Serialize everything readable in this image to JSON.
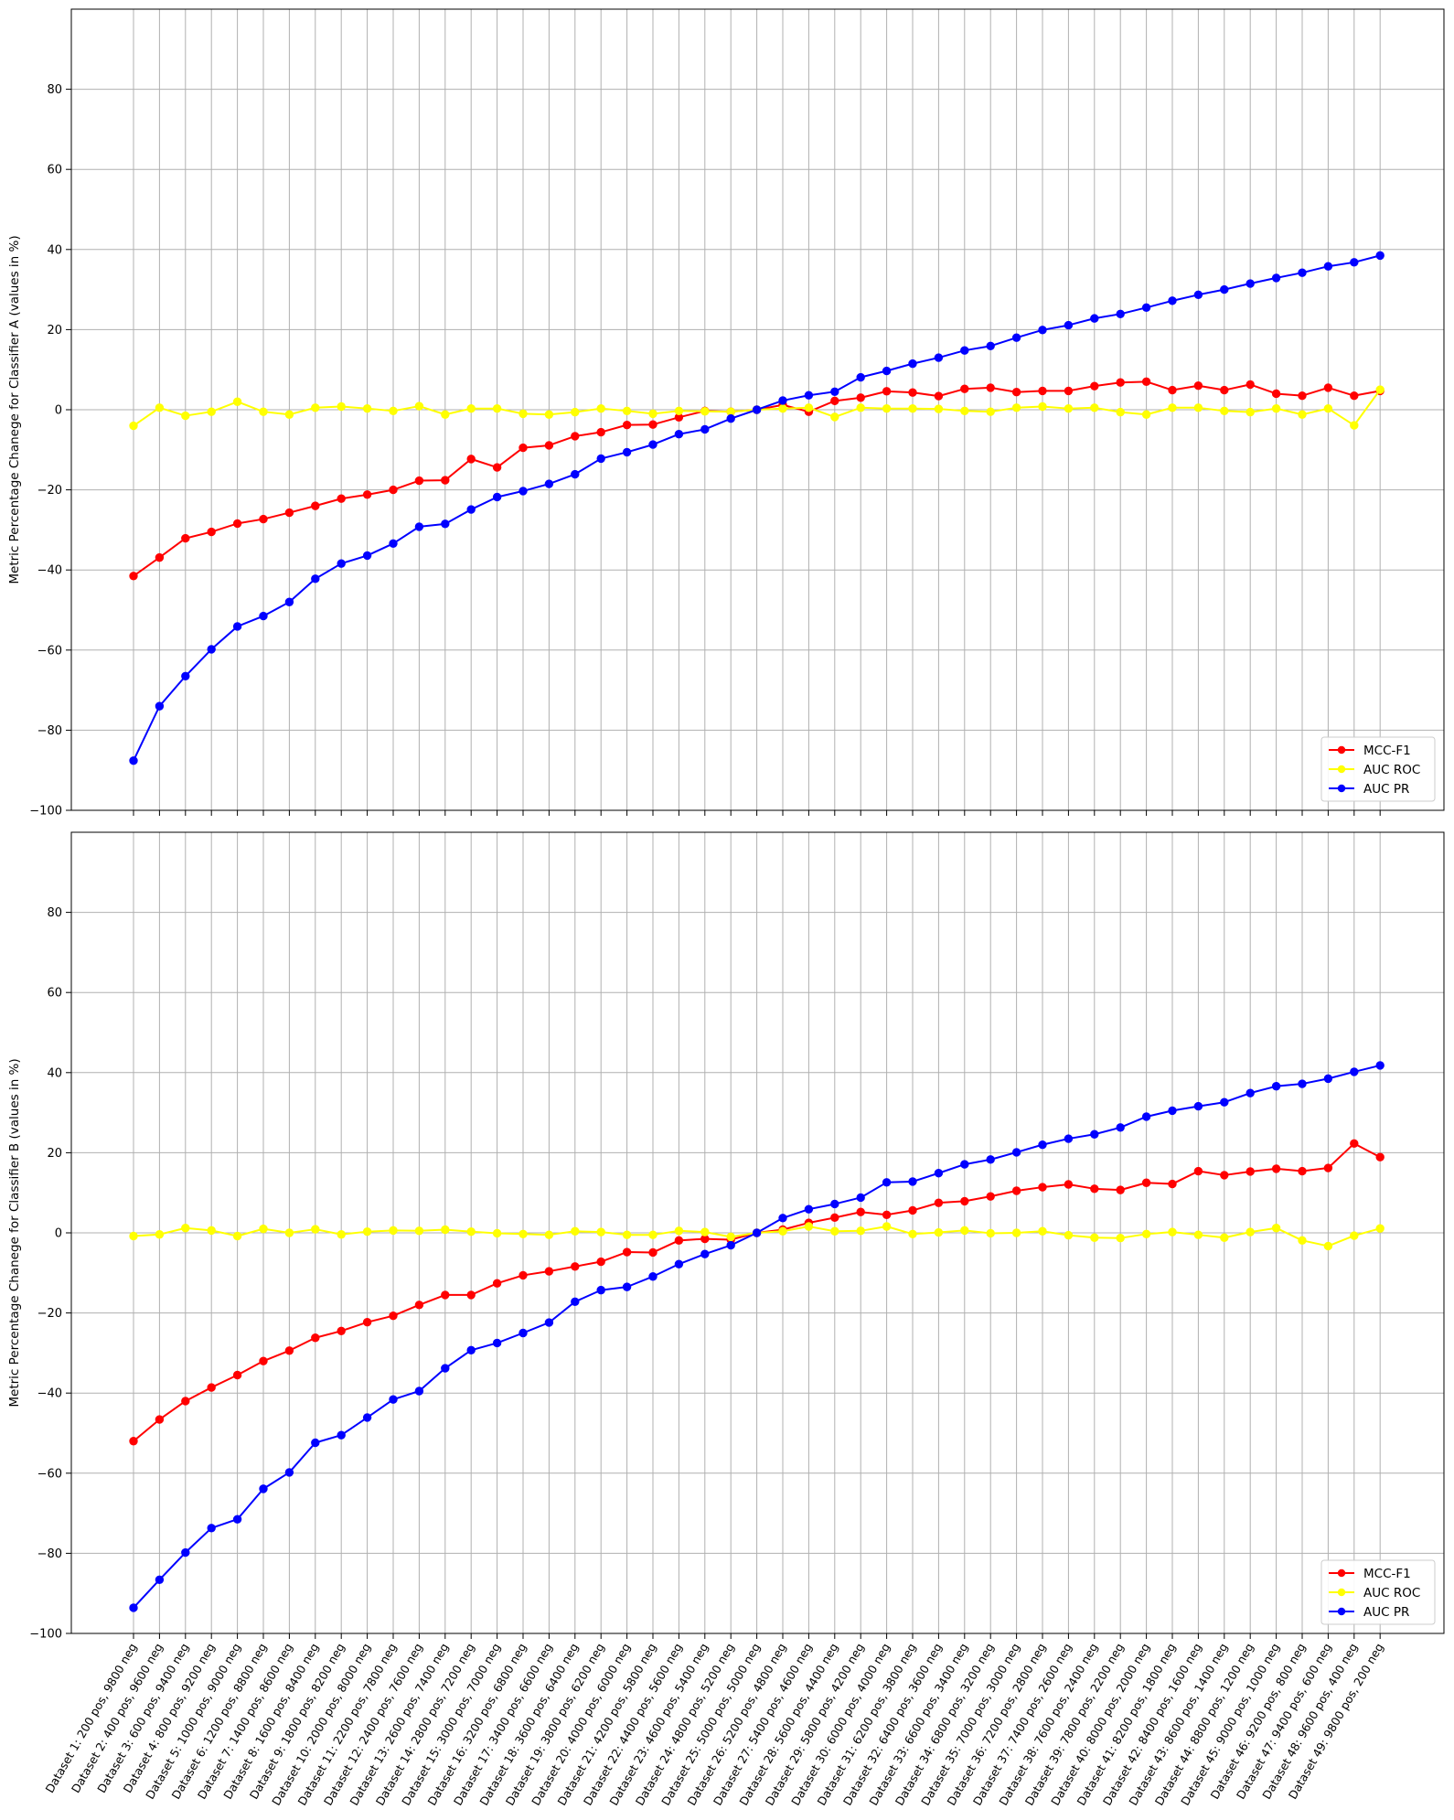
{
  "chart_data": [
    {
      "type": "line",
      "ylabel": "Metric Percentage Chanege for Classifier A (values in %)",
      "ylim": [
        -100,
        100
      ],
      "yticks": [
        -100,
        -80,
        -60,
        -40,
        -20,
        0,
        20,
        40,
        60,
        80
      ],
      "grid": true,
      "legend_position": "lower-right",
      "series": [
        {
          "name": "MCC-F1",
          "color": "#ff0000",
          "values": [
            -41.5,
            -36.9,
            -32.1,
            -30.5,
            -28.4,
            -27.3,
            -25.7,
            -24.0,
            -22.2,
            -21.2,
            -20.0,
            -17.7,
            -17.6,
            -12.3,
            -14.4,
            -9.5,
            -8.9,
            -6.6,
            -5.6,
            -3.8,
            -3.7,
            -1.9,
            -0.3,
            -0.5,
            0.0,
            1.2,
            -0.5,
            2.2,
            3.0,
            4.6,
            4.3,
            3.4,
            5.2,
            5.5,
            4.4,
            4.7,
            4.7,
            5.9,
            6.8,
            7.0,
            4.9,
            6.0,
            4.9,
            6.3,
            4.0,
            3.5,
            5.5,
            3.5,
            4.7
          ]
        },
        {
          "name": "AUC ROC",
          "color": "#ffff00",
          "values": [
            -4.0,
            0.5,
            -1.5,
            -0.5,
            2.0,
            -0.5,
            -1.2,
            0.5,
            0.8,
            0.3,
            -0.3,
            0.9,
            -1.2,
            0.3,
            0.3,
            -1.0,
            -1.2,
            -0.6,
            0.3,
            -0.3,
            -1.0,
            -0.3,
            -0.4,
            -0.5,
            0.0,
            0.3,
            0.5,
            -1.8,
            0.5,
            0.3,
            0.3,
            0.2,
            -0.3,
            -0.5,
            0.5,
            0.8,
            0.3,
            0.5,
            -0.6,
            -1.2,
            0.5,
            0.5,
            -0.3,
            -0.6,
            0.3,
            -1.2,
            0.3,
            -3.9,
            5.0
          ]
        },
        {
          "name": "AUC PR",
          "color": "#0000ff",
          "values": [
            -87.6,
            -74.0,
            -66.5,
            -59.8,
            -54.1,
            -51.5,
            -48.0,
            -42.2,
            -38.4,
            -36.4,
            -33.4,
            -29.2,
            -28.5,
            -24.9,
            -21.8,
            -20.3,
            -18.5,
            -16.1,
            -12.2,
            -10.6,
            -8.7,
            -6.1,
            -4.9,
            -2.2,
            0.0,
            2.3,
            3.6,
            4.5,
            8.1,
            9.7,
            11.5,
            13.0,
            14.8,
            15.9,
            18.0,
            19.9,
            21.1,
            22.8,
            23.9,
            25.5,
            27.2,
            28.7,
            30.0,
            31.5,
            32.9,
            34.2,
            35.8,
            36.8,
            38.5
          ]
        }
      ]
    },
    {
      "type": "line",
      "ylabel": "Metric Percentage Chanege for Classifier B (values in %)",
      "ylim": [
        -100,
        100
      ],
      "yticks": [
        -100,
        -80,
        -60,
        -40,
        -20,
        0,
        20,
        40,
        60,
        80
      ],
      "grid": true,
      "legend_position": "lower-right",
      "categories": [
        "Dataset 1: 200 pos, 9800 neg",
        "Dataset 2: 400 pos, 9600 neg",
        "Dataset 3: 600 pos, 9400 neg",
        "Dataset 4: 800 pos, 9200 neg",
        "Dataset 5: 1000 pos, 9000 neg",
        "Dataset 6: 1200 pos, 8800 neg",
        "Dataset 7: 1400 pos, 8600 neg",
        "Dataset 8: 1600 pos, 8400 neg",
        "Dataset 9: 1800 pos, 8200 neg",
        "Dataset 10: 2000 pos, 8000 neg",
        "Dataset 11: 2200 pos, 7800 neg",
        "Dataset 12: 2400 pos, 7600 neg",
        "Dataset 13: 2600 pos, 7400 neg",
        "Dataset 14: 2800 pos, 7200 neg",
        "Dataset 15: 3000 pos, 7000 neg",
        "Dataset 16: 3200 pos, 6800 neg",
        "Dataset 17: 3400 pos, 6600 neg",
        "Dataset 18: 3600 pos, 6400 neg",
        "Dataset 19: 3800 pos, 6200 neg",
        "Dataset 20: 4000 pos, 6000 neg",
        "Dataset 21: 4200 pos, 5800 neg",
        "Dataset 22: 4400 pos, 5600 neg",
        "Dataset 23: 4600 pos, 5400 neg",
        "Dataset 24: 4800 pos, 5200 neg",
        "Dataset 25: 5000 pos, 5000 neg",
        "Dataset 26: 5200 pos, 4800 neg",
        "Dataset 27: 5400 pos, 4600 neg",
        "Dataset 28: 5600 pos, 4400 neg",
        "Dataset 29: 5800 pos, 4200 neg",
        "Dataset 30: 6000 pos, 4000 neg",
        "Dataset 31: 6200 pos, 3800 neg",
        "Dataset 32: 6400 pos, 3600 neg",
        "Dataset 33: 6600 pos, 3400 neg",
        "Dataset 34: 6800 pos, 3200 neg",
        "Dataset 35: 7000 pos, 3000 neg",
        "Dataset 36: 7200 pos, 2800 neg",
        "Dataset 37: 7400 pos, 2600 neg",
        "Dataset 38: 7600 pos, 2400 neg",
        "Dataset 39: 7800 pos, 2200 neg",
        "Dataset 40: 8000 pos, 2000 neg",
        "Dataset 41: 8200 pos, 1800 neg",
        "Dataset 42: 8400 pos, 1600 neg",
        "Dataset 43: 8600 pos, 1400 neg",
        "Dataset 44: 8800 pos, 1200 neg",
        "Dataset 45: 9000 pos, 1000 neg",
        "Dataset 46: 9200 pos, 800 neg",
        "Dataset 47: 9400 pos, 600 neg",
        "Dataset 48: 9600 pos, 400 neg",
        "Dataset 49: 9800 pos, 200 neg"
      ],
      "series": [
        {
          "name": "MCC-F1",
          "color": "#ff0000",
          "values": [
            -52.0,
            -46.6,
            -42.0,
            -38.6,
            -35.5,
            -32.0,
            -29.4,
            -26.2,
            -24.5,
            -22.3,
            -20.7,
            -18.0,
            -15.5,
            -15.5,
            -12.6,
            -10.6,
            -9.6,
            -8.4,
            -7.2,
            -4.8,
            -4.9,
            -1.9,
            -1.5,
            -1.7,
            0.0,
            0.8,
            2.5,
            3.8,
            5.2,
            4.5,
            5.6,
            7.5,
            7.9,
            9.1,
            10.5,
            11.4,
            12.1,
            11.0,
            10.7,
            12.5,
            12.2,
            15.4,
            14.4,
            15.3,
            16.0,
            15.4,
            16.2,
            22.3,
            18.9
          ]
        },
        {
          "name": "AUC ROC",
          "color": "#ffff00",
          "values": [
            -0.8,
            -0.4,
            1.2,
            0.6,
            -0.8,
            1.0,
            0.0,
            0.9,
            -0.4,
            0.3,
            0.6,
            0.5,
            0.8,
            0.3,
            -0.1,
            -0.3,
            -0.5,
            0.4,
            0.2,
            -0.5,
            -0.5,
            0.5,
            0.2,
            -1.0,
            0.0,
            0.4,
            1.6,
            0.4,
            0.5,
            1.6,
            -0.3,
            0.1,
            0.6,
            -0.1,
            0.0,
            0.4,
            -0.6,
            -1.2,
            -1.3,
            -0.3,
            0.2,
            -0.5,
            -1.2,
            0.2,
            1.2,
            -1.9,
            -3.3,
            -0.7,
            1.1
          ]
        },
        {
          "name": "AUC PR",
          "color": "#0000ff",
          "values": [
            -93.6,
            -86.6,
            -79.8,
            -73.7,
            -71.5,
            -63.9,
            -59.8,
            -52.4,
            -50.5,
            -46.1,
            -41.6,
            -39.5,
            -33.8,
            -29.3,
            -27.5,
            -25.0,
            -22.4,
            -17.2,
            -14.3,
            -13.5,
            -10.9,
            -7.8,
            -5.3,
            -3.1,
            0.0,
            3.7,
            5.9,
            7.2,
            8.8,
            12.6,
            12.8,
            14.9,
            17.1,
            18.3,
            20.1,
            22.0,
            23.5,
            24.6,
            26.3,
            29.0,
            30.5,
            31.6,
            32.6,
            34.9,
            36.6,
            37.2,
            38.5,
            40.2,
            41.8
          ]
        }
      ]
    }
  ]
}
